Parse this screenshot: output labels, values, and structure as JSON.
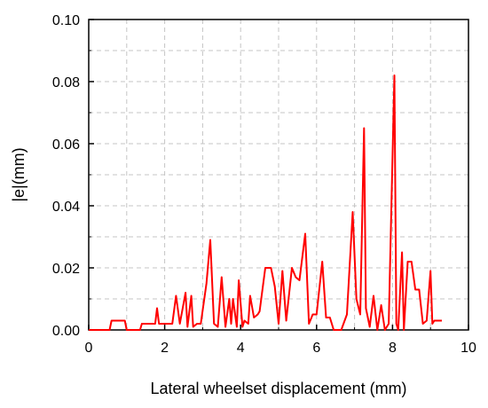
{
  "chart_data": {
    "type": "line",
    "title": "",
    "xlabel": "Lateral wheelset displacement (mm)",
    "ylabel": "|e|(mm)",
    "xlim": [
      0,
      10
    ],
    "ylim": [
      0,
      0.1
    ],
    "x_ticks": [
      0,
      2,
      4,
      6,
      8,
      10
    ],
    "x_tick_labels": [
      "0",
      "2",
      "4",
      "6",
      "8",
      "10"
    ],
    "y_ticks": [
      0,
      0.02,
      0.04,
      0.06,
      0.08,
      0.1
    ],
    "y_tick_labels": [
      "0.00",
      "0.02",
      "0.04",
      "0.06",
      "0.08",
      "0.10"
    ],
    "grid": true,
    "legend": "none",
    "series": [
      {
        "color": "#ff0000",
        "x": [
          0,
          0.55,
          0.6,
          0.95,
          1.0,
          1.05,
          1.35,
          1.4,
          1.75,
          1.8,
          1.85,
          2.2,
          2.3,
          2.4,
          2.55,
          2.6,
          2.7,
          2.75,
          2.85,
          2.95,
          3.1,
          3.2,
          3.3,
          3.4,
          3.5,
          3.6,
          3.7,
          3.75,
          3.8,
          3.9,
          3.95,
          4.05,
          4.1,
          4.2,
          4.25,
          4.35,
          4.45,
          4.5,
          4.65,
          4.8,
          4.9,
          5.0,
          5.1,
          5.2,
          5.35,
          5.45,
          5.55,
          5.7,
          5.8,
          5.9,
          6.0,
          6.15,
          6.25,
          6.35,
          6.45,
          6.55,
          6.65,
          6.8,
          6.95,
          7.05,
          7.15,
          7.25,
          7.3,
          7.4,
          7.5,
          7.6,
          7.7,
          7.8,
          7.9,
          8.05,
          8.1,
          8.15,
          8.25,
          8.3,
          8.4,
          8.5,
          8.6,
          8.7,
          8.8,
          8.9,
          9.0,
          9.05,
          9.1,
          9.2,
          9.3
        ],
        "y": [
          0,
          0,
          0.003,
          0.003,
          0,
          0,
          0,
          0.002,
          0.002,
          0.007,
          0.002,
          0.002,
          0.011,
          0.002,
          0.012,
          0.001,
          0.011,
          0.001,
          0.002,
          0.002,
          0.015,
          0.029,
          0.002,
          0.001,
          0.017,
          0.001,
          0.01,
          0.002,
          0.01,
          0.001,
          0.016,
          0.001,
          0.003,
          0.002,
          0.011,
          0.004,
          0.005,
          0.006,
          0.02,
          0.02,
          0.014,
          0.002,
          0.019,
          0.003,
          0.02,
          0.017,
          0.016,
          0.031,
          0.002,
          0.005,
          0.005,
          0.022,
          0.004,
          0.004,
          0,
          0,
          0,
          0.005,
          0.038,
          0.01,
          0.005,
          0.065,
          0.007,
          0.001,
          0.011,
          0,
          0.008,
          0,
          0.002,
          0.082,
          0.002,
          0,
          0.025,
          0,
          0.022,
          0.022,
          0.013,
          0.013,
          0.002,
          0.003,
          0.019,
          0.002,
          0.003,
          0.003,
          0.003
        ]
      }
    ]
  }
}
